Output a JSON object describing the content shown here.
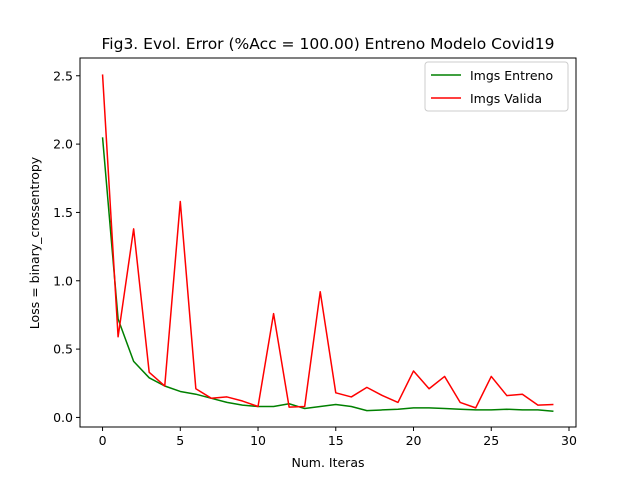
{
  "chart_data": {
    "type": "line",
    "title": "Fig3. Evol. Error (%Acc = 100.00) Entreno Modelo Covid19",
    "xlabel": "Num. Iteras",
    "ylabel": "Loss = binary_crossentropy",
    "xlim": [
      -1.45,
      30.45
    ],
    "ylim": [
      -0.07,
      2.63
    ],
    "xticks": [
      0,
      5,
      10,
      15,
      20,
      25,
      30
    ],
    "xtick_labels": [
      "0",
      "5",
      "10",
      "15",
      "20",
      "25",
      "30"
    ],
    "yticks": [
      0.0,
      0.5,
      1.0,
      1.5,
      2.0,
      2.5
    ],
    "ytick_labels": [
      "0.0",
      "0.5",
      "1.0",
      "1.5",
      "2.0",
      "2.5"
    ],
    "grid": false,
    "legend_position": "top-right",
    "x": [
      0,
      1,
      2,
      3,
      4,
      5,
      6,
      7,
      8,
      9,
      10,
      11,
      12,
      13,
      14,
      15,
      16,
      17,
      18,
      19,
      20,
      21,
      22,
      23,
      24,
      25,
      26,
      27,
      28,
      29
    ],
    "series": [
      {
        "name": "Imgs Entreno",
        "color": "#008000",
        "values": [
          2.05,
          0.72,
          0.41,
          0.29,
          0.23,
          0.19,
          0.17,
          0.14,
          0.11,
          0.09,
          0.08,
          0.08,
          0.1,
          0.065,
          0.08,
          0.095,
          0.08,
          0.05,
          0.055,
          0.06,
          0.07,
          0.07,
          0.065,
          0.06,
          0.055,
          0.055,
          0.06,
          0.055,
          0.055,
          0.045
        ]
      },
      {
        "name": "Imgs Valida",
        "color": "#ff0000",
        "values": [
          2.51,
          0.59,
          1.38,
          0.33,
          0.23,
          1.58,
          0.21,
          0.14,
          0.15,
          0.12,
          0.08,
          0.76,
          0.075,
          0.08,
          0.92,
          0.18,
          0.15,
          0.22,
          0.16,
          0.11,
          0.34,
          0.21,
          0.3,
          0.11,
          0.07,
          0.3,
          0.16,
          0.17,
          0.09,
          0.095
        ]
      }
    ]
  }
}
